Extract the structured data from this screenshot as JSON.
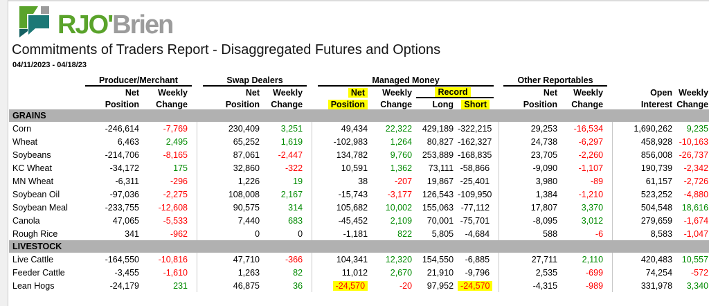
{
  "logo": {
    "text_green": "RJO'",
    "text_gray": "Brien"
  },
  "header": {
    "title": "Commitments of Traders Report - Disaggregated Futures and Options",
    "date_range": "04/11/2023 - 04/18/23"
  },
  "colors": {
    "positive": "#008a00",
    "negative": "#ff0000",
    "highlight": "#ffff00",
    "section_bar": "#b1b1b1",
    "logo_green": "#5aa32b",
    "logo_teal": "#1c7876",
    "logo_gray": "#9c9c9c"
  },
  "table": {
    "groups": {
      "producer_merchant": "Producer/Merchant",
      "swap_dealers": "Swap Dealers",
      "managed_money": "Managed Money",
      "other_reportables": "Other Reportables"
    },
    "subheaders": {
      "net": "Net",
      "weekly": "Weekly",
      "position": "Position",
      "change": "Change",
      "record": "Record",
      "long": "Long",
      "short": "Short",
      "open": "Open",
      "interest": "Interest"
    },
    "column_keys": [
      "pm_net_position",
      "pm_weekly_change",
      "sd_net_position",
      "sd_weekly_change",
      "mm_net_position",
      "mm_weekly_change",
      "mm_record_long",
      "mm_record_short",
      "or_net_position",
      "or_weekly_change",
      "open_interest",
      "oi_weekly_change"
    ],
    "sections": [
      {
        "label": "GRAINS",
        "rows": [
          {
            "name": "Corn",
            "cells": [
              {
                "v": "-246,614",
                "c": "k"
              },
              {
                "v": "-7,769",
                "c": "r"
              },
              {
                "v": "230,409",
                "c": "k"
              },
              {
                "v": "3,251",
                "c": "g"
              },
              {
                "v": "49,434",
                "c": "k"
              },
              {
                "v": "22,322",
                "c": "g"
              },
              {
                "v": "429,189",
                "c": "k"
              },
              {
                "v": "-322,215",
                "c": "k"
              },
              {
                "v": "29,253",
                "c": "k"
              },
              {
                "v": "-16,534",
                "c": "r"
              },
              {
                "v": "1,690,262",
                "c": "k"
              },
              {
                "v": "9,235",
                "c": "g"
              }
            ]
          },
          {
            "name": "Wheat",
            "cells": [
              {
                "v": "6,463",
                "c": "k"
              },
              {
                "v": "2,495",
                "c": "g"
              },
              {
                "v": "65,252",
                "c": "k"
              },
              {
                "v": "1,619",
                "c": "g"
              },
              {
                "v": "-102,983",
                "c": "k"
              },
              {
                "v": "1,264",
                "c": "g"
              },
              {
                "v": "80,827",
                "c": "k"
              },
              {
                "v": "-162,327",
                "c": "k"
              },
              {
                "v": "24,738",
                "c": "k"
              },
              {
                "v": "-6,297",
                "c": "r"
              },
              {
                "v": "458,928",
                "c": "k"
              },
              {
                "v": "-10,163",
                "c": "r"
              }
            ]
          },
          {
            "name": "Soybeans",
            "cells": [
              {
                "v": "-214,706",
                "c": "k"
              },
              {
                "v": "-8,165",
                "c": "r"
              },
              {
                "v": "87,061",
                "c": "k"
              },
              {
                "v": "-2,447",
                "c": "r"
              },
              {
                "v": "134,782",
                "c": "k"
              },
              {
                "v": "9,760",
                "c": "g"
              },
              {
                "v": "253,889",
                "c": "k"
              },
              {
                "v": "-168,835",
                "c": "k"
              },
              {
                "v": "23,705",
                "c": "k"
              },
              {
                "v": "-2,260",
                "c": "r"
              },
              {
                "v": "856,008",
                "c": "k"
              },
              {
                "v": "-26,737",
                "c": "r"
              }
            ]
          },
          {
            "name": "KC Wheat",
            "cells": [
              {
                "v": "-34,172",
                "c": "k"
              },
              {
                "v": "175",
                "c": "g"
              },
              {
                "v": "32,860",
                "c": "k"
              },
              {
                "v": "-322",
                "c": "r"
              },
              {
                "v": "10,591",
                "c": "k"
              },
              {
                "v": "1,362",
                "c": "g"
              },
              {
                "v": "73,111",
                "c": "k"
              },
              {
                "v": "-58,866",
                "c": "k"
              },
              {
                "v": "-9,090",
                "c": "k"
              },
              {
                "v": "-1,107",
                "c": "r"
              },
              {
                "v": "190,739",
                "c": "k"
              },
              {
                "v": "-2,342",
                "c": "r"
              }
            ]
          },
          {
            "name": "MN Wheat",
            "cells": [
              {
                "v": "-6,311",
                "c": "k"
              },
              {
                "v": "-296",
                "c": "r"
              },
              {
                "v": "1,226",
                "c": "k"
              },
              {
                "v": "19",
                "c": "g"
              },
              {
                "v": "38",
                "c": "k"
              },
              {
                "v": "-207",
                "c": "r"
              },
              {
                "v": "19,867",
                "c": "k"
              },
              {
                "v": "-25,401",
                "c": "k"
              },
              {
                "v": "3,980",
                "c": "k"
              },
              {
                "v": "-89",
                "c": "r"
              },
              {
                "v": "61,157",
                "c": "k"
              },
              {
                "v": "-2,726",
                "c": "r"
              }
            ]
          },
          {
            "name": "Soybean Oil",
            "cells": [
              {
                "v": "-97,036",
                "c": "k"
              },
              {
                "v": "-2,275",
                "c": "r"
              },
              {
                "v": "108,008",
                "c": "k"
              },
              {
                "v": "2,167",
                "c": "g"
              },
              {
                "v": "-15,743",
                "c": "k"
              },
              {
                "v": "-3,177",
                "c": "r"
              },
              {
                "v": "126,543",
                "c": "k"
              },
              {
                "v": "-109,950",
                "c": "k"
              },
              {
                "v": "1,384",
                "c": "k"
              },
              {
                "v": "-1,210",
                "c": "r"
              },
              {
                "v": "523,252",
                "c": "k"
              },
              {
                "v": "-4,880",
                "c": "r"
              }
            ]
          },
          {
            "name": "Soybean Meal",
            "cells": [
              {
                "v": "-233,755",
                "c": "k"
              },
              {
                "v": "-12,608",
                "c": "r"
              },
              {
                "v": "90,575",
                "c": "k"
              },
              {
                "v": "314",
                "c": "g"
              },
              {
                "v": "105,682",
                "c": "k"
              },
              {
                "v": "10,002",
                "c": "g"
              },
              {
                "v": "155,063",
                "c": "k"
              },
              {
                "v": "-77,112",
                "c": "k"
              },
              {
                "v": "17,807",
                "c": "k"
              },
              {
                "v": "3,370",
                "c": "g"
              },
              {
                "v": "504,548",
                "c": "k"
              },
              {
                "v": "18,616",
                "c": "g"
              }
            ]
          },
          {
            "name": "Canola",
            "cells": [
              {
                "v": "47,065",
                "c": "k"
              },
              {
                "v": "-5,533",
                "c": "r"
              },
              {
                "v": "7,440",
                "c": "k"
              },
              {
                "v": "683",
                "c": "g"
              },
              {
                "v": "-45,452",
                "c": "k"
              },
              {
                "v": "2,109",
                "c": "g"
              },
              {
                "v": "70,001",
                "c": "k"
              },
              {
                "v": "-75,701",
                "c": "k"
              },
              {
                "v": "-8,095",
                "c": "k"
              },
              {
                "v": "3,012",
                "c": "g"
              },
              {
                "v": "279,659",
                "c": "k"
              },
              {
                "v": "-1,674",
                "c": "r"
              }
            ]
          },
          {
            "name": "Rough Rice",
            "cells": [
              {
                "v": "341",
                "c": "k"
              },
              {
                "v": "-962",
                "c": "r"
              },
              {
                "v": "0",
                "c": "k"
              },
              {
                "v": "0",
                "c": "k"
              },
              {
                "v": "-1,181",
                "c": "k"
              },
              {
                "v": "822",
                "c": "g"
              },
              {
                "v": "5,805",
                "c": "k"
              },
              {
                "v": "-4,684",
                "c": "k"
              },
              {
                "v": "588",
                "c": "k"
              },
              {
                "v": "-6",
                "c": "r"
              },
              {
                "v": "8,583",
                "c": "k"
              },
              {
                "v": "-1,047",
                "c": "r"
              }
            ]
          }
        ]
      },
      {
        "label": "LIVESTOCK",
        "rows": [
          {
            "name": "Live Cattle",
            "cells": [
              {
                "v": "-164,550",
                "c": "k"
              },
              {
                "v": "-10,816",
                "c": "r"
              },
              {
                "v": "47,710",
                "c": "k"
              },
              {
                "v": "-366",
                "c": "r"
              },
              {
                "v": "104,341",
                "c": "k"
              },
              {
                "v": "12,320",
                "c": "g"
              },
              {
                "v": "154,550",
                "c": "k"
              },
              {
                "v": "-6,885",
                "c": "k"
              },
              {
                "v": "27,711",
                "c": "k"
              },
              {
                "v": "2,110",
                "c": "g"
              },
              {
                "v": "420,483",
                "c": "k"
              },
              {
                "v": "10,557",
                "c": "g"
              }
            ]
          },
          {
            "name": "Feeder Cattle",
            "cells": [
              {
                "v": "-3,455",
                "c": "k"
              },
              {
                "v": "-1,610",
                "c": "r"
              },
              {
                "v": "1,263",
                "c": "k"
              },
              {
                "v": "82",
                "c": "g"
              },
              {
                "v": "11,012",
                "c": "k"
              },
              {
                "v": "2,670",
                "c": "g"
              },
              {
                "v": "21,910",
                "c": "k"
              },
              {
                "v": "-9,796",
                "c": "k"
              },
              {
                "v": "2,535",
                "c": "k"
              },
              {
                "v": "-699",
                "c": "r"
              },
              {
                "v": "74,254",
                "c": "k"
              },
              {
                "v": "-572",
                "c": "r"
              }
            ]
          },
          {
            "name": "Lean Hogs",
            "cells": [
              {
                "v": "-24,179",
                "c": "k"
              },
              {
                "v": "231",
                "c": "g"
              },
              {
                "v": "46,875",
                "c": "k"
              },
              {
                "v": "36",
                "c": "g"
              },
              {
                "v": "-24,570",
                "c": "r",
                "hl": true
              },
              {
                "v": "-20",
                "c": "r"
              },
              {
                "v": "97,952",
                "c": "k"
              },
              {
                "v": "-24,570",
                "c": "r",
                "hl": true
              },
              {
                "v": "-4,315",
                "c": "k"
              },
              {
                "v": "-989",
                "c": "r"
              },
              {
                "v": "331,978",
                "c": "k"
              },
              {
                "v": "3,340",
                "c": "g"
              }
            ]
          }
        ]
      }
    ]
  }
}
